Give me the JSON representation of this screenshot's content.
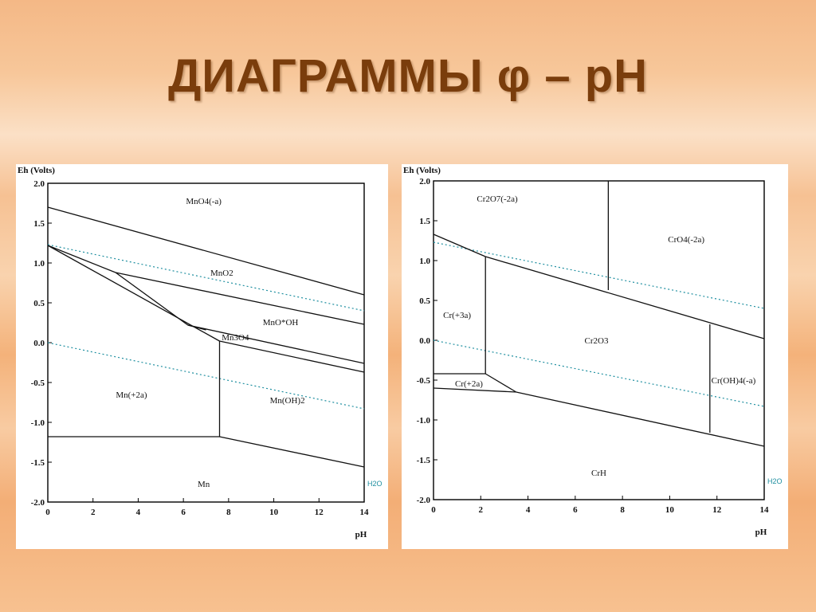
{
  "slide": {
    "title": "ДИАГРАММЫ φ – pH"
  },
  "chart_data": [
    {
      "type": "line",
      "title": "",
      "xlabel": "pH",
      "ylabel": "Eh (Volts)",
      "xlim": [
        0,
        14
      ],
      "ylim": [
        -2.0,
        2.0
      ],
      "x_ticks": [
        "0",
        "2",
        "4",
        "6",
        "8",
        "10",
        "12",
        "14"
      ],
      "y_ticks": [
        "2.0",
        "1.5",
        "1.0",
        "0.5",
        "0.0",
        "-0.5",
        "-1.0",
        "-1.5",
        "-2.0"
      ],
      "legend_label": "H2O",
      "species": [
        {
          "label": "MnO4(-a)",
          "x": 6.9,
          "y": 1.78
        },
        {
          "label": "MnO2",
          "x": 7.7,
          "y": 0.88
        },
        {
          "label": "MnO*OH",
          "x": 10.3,
          "y": 0.26
        },
        {
          "label": "Mn3O4",
          "x": 8.3,
          "y": 0.07
        },
        {
          "label": "Mn(+2a)",
          "x": 3.7,
          "y": -0.65
        },
        {
          "label": "Mn(OH)2",
          "x": 10.6,
          "y": -0.72
        },
        {
          "label": "Mn",
          "x": 6.9,
          "y": -1.77
        }
      ],
      "boundaries": [
        {
          "x": [
            0,
            14
          ],
          "y": [
            1.7,
            0.6
          ]
        },
        {
          "x": [
            0,
            7.6
          ],
          "y": [
            1.22,
            0.02
          ]
        },
        {
          "x": [
            0,
            3
          ],
          "y": [
            1.22,
            0.88
          ]
        },
        {
          "x": [
            3,
            14
          ],
          "y": [
            0.88,
            0.23
          ]
        },
        {
          "x": [
            3,
            6.2
          ],
          "y": [
            0.88,
            0.22
          ]
        },
        {
          "x": [
            6.2,
            14
          ],
          "y": [
            0.22,
            -0.26
          ]
        },
        {
          "x": [
            6.2,
            7.0
          ],
          "y": [
            0.22,
            0.16
          ]
        },
        {
          "x": [
            7.6,
            14
          ],
          "y": [
            0.02,
            -0.37
          ]
        },
        {
          "x": [
            7.6,
            7.6
          ],
          "y": [
            0.02,
            -1.18
          ]
        },
        {
          "x": [
            0,
            7.6
          ],
          "y": [
            -1.18,
            -1.18
          ]
        },
        {
          "x": [
            7.6,
            14
          ],
          "y": [
            -1.18,
            -1.56
          ]
        }
      ],
      "water_lines": [
        {
          "x": [
            0,
            14
          ],
          "y": [
            1.23,
            0.4
          ]
        },
        {
          "x": [
            0,
            14
          ],
          "y": [
            0.0,
            -0.83
          ]
        }
      ]
    },
    {
      "type": "line",
      "title": "",
      "xlabel": "pH",
      "ylabel": "Eh (Volts)",
      "xlim": [
        0,
        14
      ],
      "ylim": [
        -2.0,
        2.0
      ],
      "x_ticks": [
        "0",
        "2",
        "4",
        "6",
        "8",
        "10",
        "12",
        "14"
      ],
      "y_ticks": [
        "2.0",
        "1.5",
        "1.0",
        "0.5",
        "0.0",
        "-0.5",
        "-1.0",
        "-1.5",
        "-2.0"
      ],
      "legend_label": "H2O",
      "species": [
        {
          "label": "Cr2O7(-2a)",
          "x": 2.7,
          "y": 1.78
        },
        {
          "label": "CrO4(-2a)",
          "x": 10.7,
          "y": 1.27
        },
        {
          "label": "Cr(+3a)",
          "x": 1.0,
          "y": 0.32
        },
        {
          "label": "Cr2O3",
          "x": 6.9,
          "y": 0.0
        },
        {
          "label": "Cr(+2a)",
          "x": 1.5,
          "y": -0.54
        },
        {
          "label": "Cr(OH)4(-a)",
          "x": 12.7,
          "y": -0.5
        },
        {
          "label": "CrH",
          "x": 7.0,
          "y": -1.66
        }
      ],
      "boundaries": [
        {
          "x": [
            0,
            2.2
          ],
          "y": [
            1.33,
            1.05
          ]
        },
        {
          "x": [
            2.2,
            14
          ],
          "y": [
            1.05,
            0.02
          ]
        },
        {
          "x": [
            2.2,
            2.2
          ],
          "y": [
            1.05,
            -0.42
          ]
        },
        {
          "x": [
            7.4,
            7.4
          ],
          "y": [
            2.0,
            0.63
          ]
        },
        {
          "x": [
            11.7,
            11.7
          ],
          "y": [
            0.2,
            -1.16
          ]
        },
        {
          "x": [
            0,
            2.2
          ],
          "y": [
            -0.42,
            -0.42
          ]
        },
        {
          "x": [
            2.2,
            3.5
          ],
          "y": [
            -0.42,
            -0.65
          ]
        },
        {
          "x": [
            0,
            3.5
          ],
          "y": [
            -0.6,
            -0.65
          ]
        },
        {
          "x": [
            3.5,
            14
          ],
          "y": [
            -0.65,
            -1.33
          ]
        }
      ],
      "water_lines": [
        {
          "x": [
            0,
            14
          ],
          "y": [
            1.23,
            0.4
          ]
        },
        {
          "x": [
            0,
            14
          ],
          "y": [
            0.0,
            -0.83
          ]
        }
      ]
    }
  ]
}
